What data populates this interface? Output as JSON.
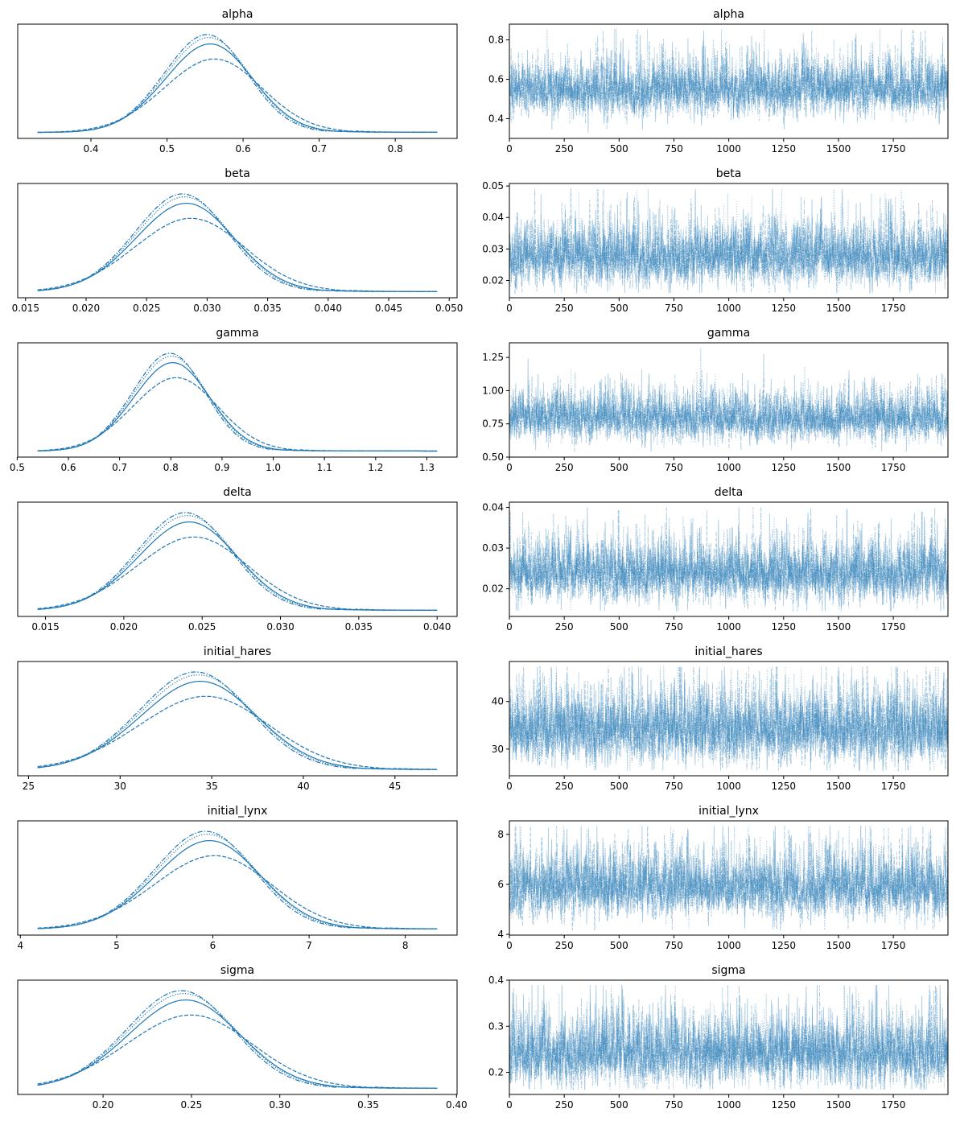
{
  "figure": {
    "layout": "trace plot",
    "color": "#1f77b4",
    "chain_line_styles": [
      "solid",
      "dashed",
      "dotted",
      "dashdot"
    ]
  },
  "chart_data": [
    {
      "var": "alpha",
      "title": "alpha",
      "density": {
        "type": "line",
        "kind": "kde",
        "chains": 4,
        "range": [
          0.33,
          0.855
        ],
        "mean": 0.55,
        "sd": 0.058,
        "xticks": [
          0.4,
          0.5,
          0.6,
          0.7,
          0.8
        ],
        "xtick_labels": [
          "0.4",
          "0.5",
          "0.6",
          "0.7",
          "0.8"
        ]
      },
      "trace": {
        "type": "line",
        "chains": 4,
        "draws": 2000,
        "xlim": [
          0,
          1999
        ],
        "xticks": [
          0,
          250,
          500,
          750,
          1000,
          1250,
          1500,
          1750
        ],
        "ylim": [
          0.3,
          0.88
        ],
        "yticks": [
          0.4,
          0.6,
          0.8
        ],
        "ytick_labels": [
          "0.4",
          "0.6",
          "0.8"
        ],
        "mean": 0.55,
        "sd": 0.058
      }
    },
    {
      "var": "beta",
      "title": "beta",
      "density": {
        "type": "line",
        "kind": "kde",
        "chains": 4,
        "range": [
          0.016,
          0.049
        ],
        "mean": 0.0278,
        "sd": 0.0041,
        "xticks": [
          0.015,
          0.02,
          0.025,
          0.03,
          0.035,
          0.04,
          0.045,
          0.05
        ],
        "xtick_labels": [
          "0.015",
          "0.020",
          "0.025",
          "0.030",
          "0.035",
          "0.040",
          "0.045",
          "0.050"
        ]
      },
      "trace": {
        "type": "line",
        "chains": 4,
        "draws": 2000,
        "xlim": [
          0,
          1999
        ],
        "xticks": [
          0,
          250,
          500,
          750,
          1000,
          1250,
          1500,
          1750
        ],
        "ylim": [
          0.0145,
          0.0508
        ],
        "yticks": [
          0.02,
          0.03,
          0.04,
          0.05
        ],
        "ytick_labels": [
          "0.02",
          "0.03",
          "0.04",
          "0.05"
        ],
        "mean": 0.0278,
        "sd": 0.0041
      }
    },
    {
      "var": "gamma",
      "title": "gamma",
      "density": {
        "type": "line",
        "kind": "kde",
        "chains": 4,
        "range": [
          0.54,
          1.32
        ],
        "mean": 0.795,
        "sd": 0.075,
        "xticks": [
          0.5,
          0.6,
          0.7,
          0.8,
          0.9,
          1.0,
          1.1,
          1.2,
          1.3
        ],
        "xtick_labels": [
          "0.5",
          "0.6",
          "0.7",
          "0.8",
          "0.9",
          "1.0",
          "1.1",
          "1.2",
          "1.3"
        ]
      },
      "trace": {
        "type": "line",
        "chains": 4,
        "draws": 2000,
        "xlim": [
          0,
          1999
        ],
        "xticks": [
          0,
          250,
          500,
          750,
          1000,
          1250,
          1500,
          1750
        ],
        "ylim": [
          0.5,
          1.36
        ],
        "yticks": [
          0.5,
          0.75,
          1.0,
          1.25
        ],
        "ytick_labels": [
          "0.50",
          "0.75",
          "1.00",
          "1.25"
        ],
        "mean": 0.795,
        "sd": 0.075
      }
    },
    {
      "var": "delta",
      "title": "delta",
      "density": {
        "type": "line",
        "kind": "kde",
        "chains": 4,
        "range": [
          0.0145,
          0.04
        ],
        "mean": 0.0238,
        "sd": 0.0032,
        "xticks": [
          0.015,
          0.02,
          0.025,
          0.03,
          0.035,
          0.04
        ],
        "xtick_labels": [
          "0.015",
          "0.020",
          "0.025",
          "0.030",
          "0.035",
          "0.040"
        ]
      },
      "trace": {
        "type": "line",
        "chains": 4,
        "draws": 2000,
        "xlim": [
          0,
          1999
        ],
        "xticks": [
          0,
          250,
          500,
          750,
          1000,
          1250,
          1500,
          1750
        ],
        "ylim": [
          0.0132,
          0.0413
        ],
        "yticks": [
          0.02,
          0.03,
          0.04
        ],
        "ytick_labels": [
          "0.02",
          "0.03",
          "0.04"
        ],
        "mean": 0.0238,
        "sd": 0.0032
      }
    },
    {
      "var": "initial_hares",
      "title": "initial_hares",
      "density": {
        "type": "line",
        "kind": "kde",
        "chains": 4,
        "range": [
          25.5,
          47.3
        ],
        "mean": 34.0,
        "sd": 3.2,
        "xticks": [
          25,
          30,
          35,
          40,
          45
        ],
        "xtick_labels": [
          "25",
          "30",
          "35",
          "40",
          "45"
        ]
      },
      "trace": {
        "type": "line",
        "chains": 4,
        "draws": 2000,
        "xlim": [
          0,
          1999
        ],
        "xticks": [
          0,
          250,
          500,
          750,
          1000,
          1250,
          1500,
          1750
        ],
        "ylim": [
          24.4,
          48.4
        ],
        "yticks": [
          30,
          40
        ],
        "ytick_labels": [
          "30",
          "40"
        ],
        "mean": 34.0,
        "sd": 3.2
      }
    },
    {
      "var": "initial_lynx",
      "title": "initial_lynx",
      "density": {
        "type": "line",
        "kind": "kde",
        "chains": 4,
        "range": [
          4.18,
          8.33
        ],
        "mean": 5.9,
        "sd": 0.55,
        "xticks": [
          4,
          5,
          6,
          7,
          8
        ],
        "xtick_labels": [
          "4",
          "5",
          "6",
          "7",
          "8"
        ]
      },
      "trace": {
        "type": "line",
        "chains": 4,
        "draws": 2000,
        "xlim": [
          0,
          1999
        ],
        "xticks": [
          0,
          250,
          500,
          750,
          1000,
          1250,
          1500,
          1750
        ],
        "ylim": [
          3.97,
          8.54
        ],
        "yticks": [
          4,
          6,
          8
        ],
        "ytick_labels": [
          "4",
          "6",
          "8"
        ],
        "mean": 5.9,
        "sd": 0.55
      }
    },
    {
      "var": "sigma",
      "title": "sigma",
      "density": {
        "type": "line",
        "kind": "kde",
        "chains": 4,
        "range": [
          0.163,
          0.389
        ],
        "mean": 0.243,
        "sd": 0.032,
        "xticks": [
          0.2,
          0.25,
          0.3,
          0.35,
          0.4
        ],
        "xtick_labels": [
          "0.20",
          "0.25",
          "0.30",
          "0.35",
          "0.40"
        ]
      },
      "trace": {
        "type": "line",
        "chains": 4,
        "draws": 2000,
        "xlim": [
          0,
          1999
        ],
        "xticks": [
          0,
          250,
          500,
          750,
          1000,
          1250,
          1500,
          1750
        ],
        "ylim": [
          0.152,
          0.4
        ],
        "yticks": [
          0.2,
          0.3,
          0.4
        ],
        "ytick_labels": [
          "0.2",
          "0.3",
          "0.4"
        ],
        "mean": 0.243,
        "sd": 0.032
      }
    }
  ]
}
